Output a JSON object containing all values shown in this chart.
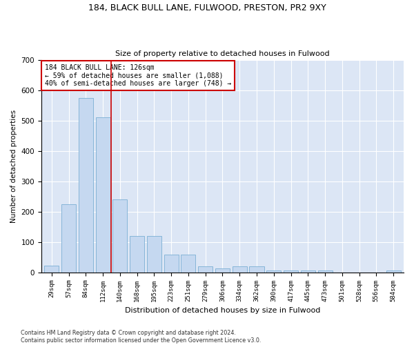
{
  "title1": "184, BLACK BULL LANE, FULWOOD, PRESTON, PR2 9XY",
  "title2": "Size of property relative to detached houses in Fulwood",
  "xlabel": "Distribution of detached houses by size in Fulwood",
  "ylabel": "Number of detached properties",
  "categories": [
    "29sqm",
    "57sqm",
    "84sqm",
    "112sqm",
    "140sqm",
    "168sqm",
    "195sqm",
    "223sqm",
    "251sqm",
    "279sqm",
    "306sqm",
    "334sqm",
    "362sqm",
    "390sqm",
    "417sqm",
    "445sqm",
    "473sqm",
    "501sqm",
    "528sqm",
    "556sqm",
    "584sqm"
  ],
  "values": [
    23,
    225,
    575,
    510,
    240,
    120,
    120,
    58,
    58,
    20,
    12,
    20,
    20,
    5,
    5,
    5,
    5,
    0,
    0,
    0,
    5
  ],
  "bar_color": "#c5d8f0",
  "bar_edge_color": "#7bafd4",
  "background_color": "#dce6f5",
  "grid_color": "#ffffff",
  "vline_x_index": 3.5,
  "vline_color": "#cc0000",
  "annotation_text": "184 BLACK BULL LANE: 126sqm\n← 59% of detached houses are smaller (1,088)\n40% of semi-detached houses are larger (748) →",
  "annotation_box_color": "#ffffff",
  "annotation_box_edge_color": "#cc0000",
  "footer": "Contains HM Land Registry data © Crown copyright and database right 2024.\nContains public sector information licensed under the Open Government Licence v3.0.",
  "ylim": [
    0,
    700
  ],
  "yticks": [
    0,
    100,
    200,
    300,
    400,
    500,
    600,
    700
  ],
  "figsize": [
    6.0,
    5.0
  ],
  "dpi": 100
}
